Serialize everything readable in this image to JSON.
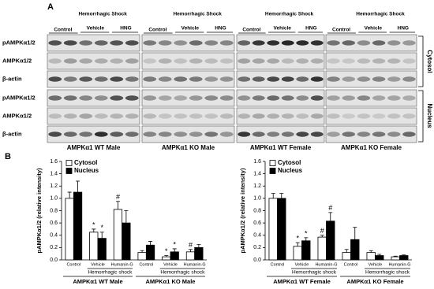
{
  "panel_a": {
    "label": "A",
    "panels": [
      {
        "name": "AMPKα1 WT Male",
        "control": "Control",
        "shock": "Hemorrhagic Shock",
        "vehicle": "Vehicle",
        "hng": "HNG"
      },
      {
        "name": "AMPKα1 KO Male",
        "control": "Control",
        "shock": "Hemorrhagic Shock",
        "vehicle": "Vehicle",
        "hng": "HNG"
      },
      {
        "name": "AMPKα1 WT Female",
        "control": "Control",
        "shock": "Hemorrhagic Shock",
        "vehicle": "Vehicle",
        "hng": "HNG"
      },
      {
        "name": "AMPKα1 KO Female",
        "control": "Control",
        "shock": "Hemorrhagic Shock",
        "vehicle": "Vehicle",
        "hng": "HNG"
      }
    ],
    "rows": [
      "pAMPKα1/2",
      "AMPKα1/2",
      "β-actin",
      "pAMPKα1/2",
      "AMPKα1/2",
      "β-actin"
    ],
    "fractions": [
      "Cytosol",
      "Nucleus"
    ]
  },
  "panel_b": {
    "label": "B"
  },
  "chart_data": [
    {
      "type": "bar",
      "ylabel": "pAMPKα1/2 (relative intensity)",
      "categories": [
        "Control",
        "Vehicle",
        "Humanin-G",
        "Control",
        "Vehicle",
        "Humanin-G"
      ],
      "groups": [
        {
          "name": "AMPKα1 WT Male",
          "subtitle": "Hemorrhagic shock"
        },
        {
          "name": "AMPKα1 KO Male",
          "subtitle": "Hemorrhagic shock"
        }
      ],
      "series": [
        {
          "name": "Cytosol",
          "color": "#ffffff",
          "values": [
            1.0,
            0.45,
            0.82,
            0.12,
            0.05,
            0.13
          ],
          "errors": [
            0.1,
            0.05,
            0.13,
            0.03,
            0.02,
            0.04
          ],
          "annotations": [
            null,
            "*",
            "#",
            null,
            "*",
            "#"
          ]
        },
        {
          "name": "Nucleus",
          "color": "#000000",
          "values": [
            1.1,
            0.35,
            0.6,
            0.24,
            0.13,
            0.2
          ],
          "errors": [
            0.18,
            0.1,
            0.2,
            0.06,
            0.05,
            0.05
          ],
          "annotations": [
            null,
            "*",
            null,
            null,
            "*",
            null
          ]
        }
      ],
      "ylim": [
        0,
        1.6
      ],
      "yticks": [
        {
          "value": 0,
          "label": "0.0"
        },
        0.2,
        0.4,
        0.6,
        0.8,
        {
          "value": 1,
          "label": "1.0"
        },
        1.2,
        1.4,
        1.6
      ],
      "legend": "upper left"
    },
    {
      "type": "bar",
      "ylabel": "pAMPKα1/2 (relative intensity)",
      "categories": [
        "Control",
        "Vehicle",
        "Humanin-G",
        "Control",
        "Vehicle",
        "Humanin-G"
      ],
      "groups": [
        {
          "name": "AMPKα1 WT Female",
          "subtitle": "Hemorrhagic shock"
        },
        {
          "name": "AMPKα1 KO Female",
          "subtitle": "Hemorrhagic shock"
        }
      ],
      "series": [
        {
          "name": "Cytosol",
          "color": "#ffffff",
          "values": [
            1.0,
            0.22,
            0.37,
            0.12,
            0.12,
            0.05
          ],
          "errors": [
            0.08,
            0.06,
            0.03,
            0.05,
            0.03,
            0.01
          ],
          "annotations": [
            null,
            "*",
            "#",
            null,
            null,
            null
          ]
        },
        {
          "name": "Nucleus",
          "color": "#000000",
          "values": [
            1.0,
            0.31,
            0.63,
            0.33,
            0.07,
            0.07
          ],
          "errors": [
            0.08,
            0.05,
            0.14,
            0.2,
            0.02,
            0.01
          ],
          "annotations": [
            null,
            "*",
            "#",
            null,
            null,
            null
          ]
        }
      ],
      "ylim": [
        0,
        1.6
      ],
      "yticks": [
        {
          "value": 0,
          "label": "0.0"
        },
        0.2,
        0.4,
        0.6,
        0.8,
        {
          "value": 1,
          "label": "1.0"
        },
        1.2,
        1.4,
        1.6
      ],
      "legend": "upper left"
    }
  ]
}
